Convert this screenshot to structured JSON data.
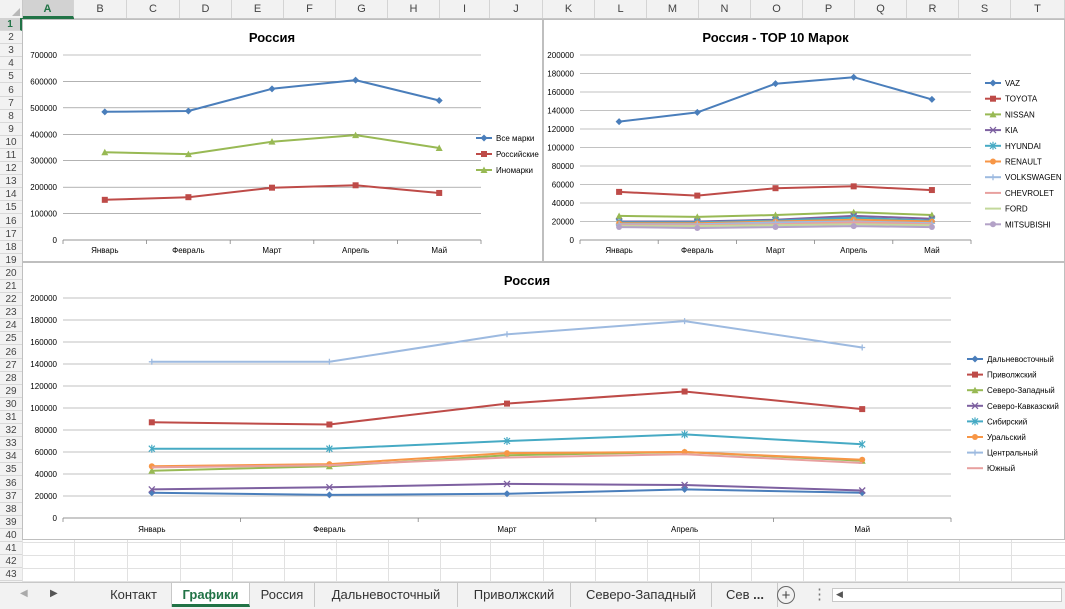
{
  "columns": [
    "A",
    "B",
    "C",
    "D",
    "E",
    "F",
    "G",
    "H",
    "I",
    "J",
    "K",
    "L",
    "M",
    "N",
    "O",
    "P",
    "Q",
    "R",
    "S",
    "T"
  ],
  "rows": [
    "1",
    "2",
    "3",
    "4",
    "5",
    "6",
    "7",
    "8",
    "9",
    "10",
    "11",
    "12",
    "13",
    "14",
    "15",
    "16",
    "17",
    "18",
    "19",
    "20",
    "21",
    "22",
    "23",
    "24",
    "25",
    "26",
    "27",
    "28",
    "29",
    "30",
    "31",
    "32",
    "33",
    "34",
    "35",
    "36",
    "37",
    "38",
    "39",
    "40",
    "41",
    "42",
    "43"
  ],
  "selected_cell": "A1",
  "sheet_tabs": [
    "Контакт",
    "Графики",
    "Россия",
    "Дальневосточный",
    "Приволжский",
    "Северо-Западный",
    "Сев"
  ],
  "active_tab": "Графики",
  "tab_overflow": "...",
  "icons": {
    "prev_sheet": "triangle-left-icon",
    "next_sheet": "triangle-right-icon",
    "add_sheet": "plus-circle-icon",
    "more": "vertical-dots-icon",
    "scroll_left": "caret-left-icon"
  },
  "chart_data": [
    {
      "type": "line",
      "title": "Россия",
      "categories": [
        "Январь",
        "Февраль",
        "Март",
        "Апрель",
        "Май"
      ],
      "ylim": [
        0,
        700000
      ],
      "yticks": [
        "0",
        "100000",
        "200000",
        "300000",
        "400000",
        "500000",
        "600000",
        "700000"
      ],
      "grid": true,
      "legend": "right",
      "series": [
        {
          "name": "Все марки",
          "color": "#4a7ebb",
          "marker": "diamond",
          "values": [
            485000,
            488000,
            572000,
            605000,
            528000
          ]
        },
        {
          "name": "Российские",
          "color": "#be4b48",
          "marker": "square",
          "values": [
            152000,
            162000,
            198000,
            207000,
            178000
          ]
        },
        {
          "name": "Иномарки",
          "color": "#98b954",
          "marker": "triangle",
          "values": [
            332000,
            325000,
            372000,
            397000,
            348000
          ]
        }
      ]
    },
    {
      "type": "line",
      "title": "Россия - TOP 10 Марок",
      "categories": [
        "Январь",
        "Февраль",
        "Март",
        "Апрель",
        "Май"
      ],
      "ylim": [
        0,
        200000
      ],
      "yticks": [
        "0",
        "20000",
        "40000",
        "60000",
        "80000",
        "100000",
        "120000",
        "140000",
        "160000",
        "180000",
        "200000"
      ],
      "grid": true,
      "legend": "right",
      "series": [
        {
          "name": "VAZ",
          "color": "#4a7ebb",
          "marker": "diamond",
          "values": [
            128000,
            138000,
            169000,
            176000,
            152000
          ]
        },
        {
          "name": "TOYOTA",
          "color": "#be4b48",
          "marker": "square",
          "values": [
            52000,
            48000,
            56000,
            58000,
            54000
          ]
        },
        {
          "name": "NISSAN",
          "color": "#98b954",
          "marker": "triangle",
          "values": [
            26000,
            25000,
            27000,
            30000,
            27000
          ]
        },
        {
          "name": "KIA",
          "color": "#7d60a0",
          "marker": "x",
          "values": [
            20000,
            20000,
            22000,
            26000,
            23000
          ]
        },
        {
          "name": "HYUNDAI",
          "color": "#46aac4",
          "marker": "star",
          "values": [
            19000,
            19000,
            21000,
            24000,
            21000
          ]
        },
        {
          "name": "RENAULT",
          "color": "#f79646",
          "marker": "circle",
          "values": [
            18000,
            18000,
            20000,
            22000,
            20000
          ]
        },
        {
          "name": "VOLKSWAGEN",
          "color": "#9dbae0",
          "marker": "plus",
          "values": [
            17000,
            17000,
            19000,
            20000,
            18000
          ]
        },
        {
          "name": "CHEVROLET",
          "color": "#e8a09f",
          "marker": "none",
          "values": [
            16000,
            16000,
            17000,
            19000,
            17000
          ]
        },
        {
          "name": "FORD",
          "color": "#c3d89b",
          "marker": "none",
          "values": [
            15000,
            15000,
            16000,
            17000,
            16000
          ]
        },
        {
          "name": "MITSUBISHI",
          "color": "#b3a2c7",
          "marker": "circle",
          "values": [
            14000,
            13000,
            14000,
            15000,
            14000
          ]
        }
      ]
    },
    {
      "type": "line",
      "title": "Россия",
      "categories": [
        "Январь",
        "Февраль",
        "Март",
        "Апрель",
        "Май"
      ],
      "ylim": [
        0,
        200000
      ],
      "yticks": [
        "0",
        "20000",
        "40000",
        "60000",
        "80000",
        "100000",
        "120000",
        "140000",
        "160000",
        "180000",
        "200000"
      ],
      "grid": true,
      "legend": "right",
      "series": [
        {
          "name": "Дальневосточный",
          "color": "#4a7ebb",
          "marker": "diamond",
          "values": [
            23000,
            21000,
            22000,
            26000,
            23000
          ]
        },
        {
          "name": "Приволжский",
          "color": "#be4b48",
          "marker": "square",
          "values": [
            87000,
            85000,
            104000,
            115000,
            99000
          ]
        },
        {
          "name": "Северо-Западный",
          "color": "#98b954",
          "marker": "triangle",
          "values": [
            43000,
            47000,
            57000,
            60000,
            52000
          ]
        },
        {
          "name": "Северо-Кавказский",
          "color": "#7d60a0",
          "marker": "x",
          "values": [
            26000,
            28000,
            31000,
            30000,
            25000
          ]
        },
        {
          "name": "Сибирский",
          "color": "#46aac4",
          "marker": "star",
          "values": [
            63000,
            63000,
            70000,
            76000,
            67000
          ]
        },
        {
          "name": "Уральский",
          "color": "#f79646",
          "marker": "circle",
          "values": [
            47000,
            49000,
            59000,
            60000,
            53000
          ]
        },
        {
          "name": "Центральный",
          "color": "#9dbae0",
          "marker": "plus",
          "values": [
            142000,
            142000,
            167000,
            179000,
            155000
          ]
        },
        {
          "name": "Южный",
          "color": "#e8a09f",
          "marker": "none",
          "values": [
            46000,
            48000,
            55000,
            58000,
            50000
          ]
        }
      ]
    }
  ]
}
